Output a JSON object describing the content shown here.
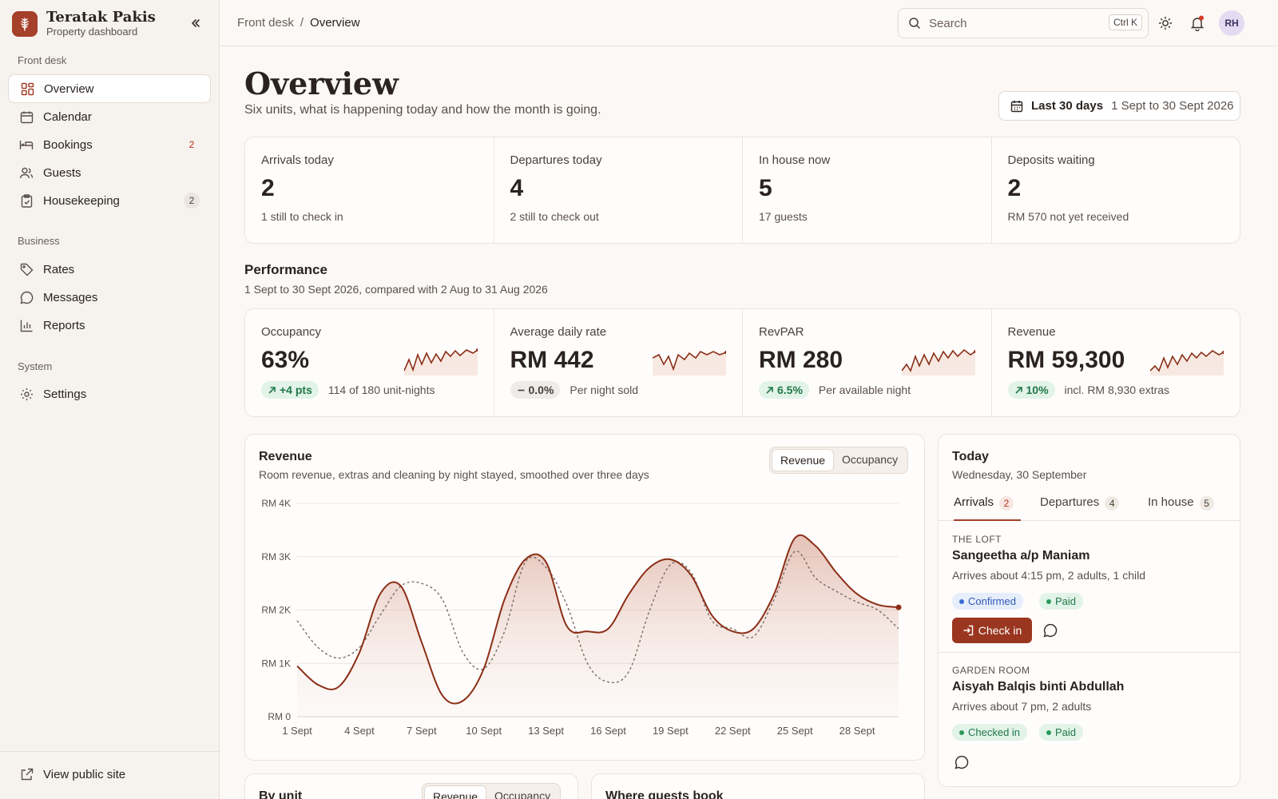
{
  "brand": {
    "name": "Teratak Pakis",
    "subtitle": "Property dashboard"
  },
  "sidebar": {
    "sections": [
      {
        "label": "Front desk"
      },
      {
        "label": "Business"
      },
      {
        "label": "System"
      }
    ],
    "items": [
      {
        "label": "Overview",
        "icon": "grid-icon",
        "badge": ""
      },
      {
        "label": "Calendar",
        "icon": "calendar-icon",
        "badge": ""
      },
      {
        "label": "Bookings",
        "icon": "bed-icon",
        "badge": "2"
      },
      {
        "label": "Guests",
        "icon": "users-icon",
        "badge": ""
      },
      {
        "label": "Housekeeping",
        "icon": "clipboard-icon",
        "badge": "2"
      },
      {
        "label": "Rates",
        "icon": "tag-icon",
        "badge": ""
      },
      {
        "label": "Messages",
        "icon": "message-icon",
        "badge": ""
      },
      {
        "label": "Reports",
        "icon": "bar-chart-icon",
        "badge": ""
      },
      {
        "label": "Settings",
        "icon": "gear-icon",
        "badge": ""
      }
    ],
    "footer": {
      "label": "View public site"
    }
  },
  "topbar": {
    "breadcrumb": [
      "Front desk",
      "/",
      "Overview"
    ],
    "search": {
      "placeholder": "Search",
      "shortcut": "Ctrl K"
    },
    "avatar": "RH"
  },
  "header": {
    "title": "Overview",
    "subtitle": "Six units, what is happening today and how the month is going.",
    "range_label": "Last 30 days",
    "range_value": "1 Sept to 30 Sept 2026"
  },
  "stats": [
    {
      "label": "Arrivals today",
      "value": "2",
      "sub": "1 still to check in"
    },
    {
      "label": "Departures today",
      "value": "4",
      "sub": "2 still to check out"
    },
    {
      "label": "In house now",
      "value": "5",
      "sub": "17 guests"
    },
    {
      "label": "Deposits waiting",
      "value": "2",
      "sub": "RM 570 not yet received"
    }
  ],
  "performance": {
    "title": "Performance",
    "subtitle": "1 Sept to 30 Sept 2026, compared with 2 Aug to 31 Aug 2026",
    "kpis": [
      {
        "label": "Occupancy",
        "value": "63%",
        "delta": "+4 pts",
        "trend": "up",
        "note": "114 of 180 unit-nights"
      },
      {
        "label": "Average daily rate",
        "value": "RM 442",
        "delta": "0.0%",
        "trend": "flat",
        "note": "Per night sold"
      },
      {
        "label": "RevPAR",
        "value": "RM 280",
        "delta": "6.5%",
        "trend": "up",
        "note": "Per available night"
      },
      {
        "label": "Revenue",
        "value": "RM 59,300",
        "delta": "10%",
        "trend": "up",
        "note": "incl. RM 8,930 extras"
      }
    ]
  },
  "revenue_card": {
    "title": "Revenue",
    "subtitle": "Room revenue, extras and cleaning by night stayed, smoothed over three days",
    "toggle": [
      "Revenue",
      "Occupancy"
    ],
    "selected": "Revenue"
  },
  "chart_data": {
    "type": "area",
    "x": [
      1,
      2,
      3,
      4,
      5,
      6,
      7,
      8,
      9,
      10,
      11,
      12,
      13,
      14,
      15,
      16,
      17,
      18,
      19,
      20,
      21,
      22,
      23,
      24,
      25,
      26,
      27,
      28,
      29,
      30
    ],
    "x_ticks": [
      "1 Sept",
      "4 Sept",
      "7 Sept",
      "10 Sept",
      "13 Sept",
      "16 Sept",
      "19 Sept",
      "22 Sept",
      "25 Sept",
      "28 Sept"
    ],
    "y_ticks": [
      "RM 0",
      "RM 1K",
      "RM 2K",
      "RM 3K",
      "RM 4K"
    ],
    "ylim": [
      0,
      4000
    ],
    "series": [
      {
        "values": [
          950,
          600,
          560,
          1200,
          2300,
          2450,
          1400,
          400,
          300,
          900,
          2200,
          2950,
          2900,
          1700,
          1600,
          1650,
          2300,
          2800,
          2950,
          2650,
          1900,
          1600,
          1650,
          2300,
          3350,
          3200,
          2700,
          2300,
          2100,
          2050
        ],
        "color": "#8b2e16"
      },
      {
        "values": [
          1800,
          1300,
          1100,
          1300,
          1900,
          2450,
          2500,
          2200,
          1200,
          900,
          1600,
          2900,
          2800,
          2100,
          1000,
          650,
          850,
          2000,
          2850,
          2700,
          1800,
          1650,
          1500,
          2200,
          3100,
          2600,
          2350,
          2150,
          2000,
          1650
        ],
        "color": "#7a6e68",
        "dashed": true
      }
    ],
    "grid": true
  },
  "today": {
    "title": "Today",
    "date": "Wednesday, 30 September",
    "tabs": [
      {
        "label": "Arrivals",
        "count": "2"
      },
      {
        "label": "Departures",
        "count": "4"
      },
      {
        "label": "In house",
        "count": "5"
      }
    ],
    "guests": [
      {
        "room": "THE LOFT",
        "name": "Sangeetha a/p Maniam",
        "info": "Arrives about 4:15 pm, 2 adults, 1 child",
        "status": "Confirmed",
        "payment": "Paid",
        "action": "Check in"
      },
      {
        "room": "GARDEN ROOM",
        "name": "Aisyah Balqis binti Abdullah",
        "info": "Arrives about 7 pm, 2 adults",
        "status": "Checked in",
        "payment": "Paid"
      }
    ]
  },
  "by_unit": {
    "title": "By unit",
    "toggle": [
      "Revenue",
      "Occupancy"
    ]
  },
  "where_book": {
    "title": "Where guests book"
  }
}
